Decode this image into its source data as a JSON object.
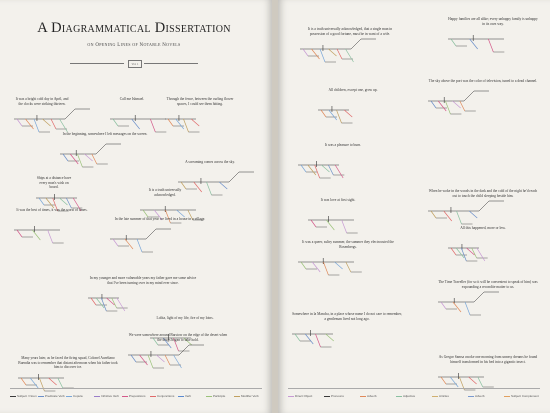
{
  "title": "A Diagrammatical Dissertation",
  "subtitle": "on Opening Lines of Notable Novels",
  "tag": "Vol. 1",
  "legend_left": [
    {
      "label": "Subject / Noun",
      "color": "#3a3a3a"
    },
    {
      "label": "Predicate Verb",
      "color": "#6b8fc9"
    },
    {
      "label": "Copula",
      "color": "#7aa7d8"
    },
    {
      "label": "Infinitive Verb",
      "color": "#9a7ec8"
    },
    {
      "label": "Prepositions",
      "color": "#d45a8a"
    },
    {
      "label": "Conjunctions",
      "color": "#e06a6a"
    },
    {
      "label": "Verb",
      "color": "#5a8ad0"
    },
    {
      "label": "Participle",
      "color": "#9bc27a"
    },
    {
      "label": "Modifier Verb",
      "color": "#c0a060"
    }
  ],
  "legend_right": [
    {
      "label": "Direct Object",
      "color": "#c79ad4"
    },
    {
      "label": "Pronouns",
      "color": "#3a3a3a"
    },
    {
      "label": "Adverb",
      "color": "#e08a5a"
    },
    {
      "label": "Adjective",
      "color": "#8ac0a0"
    },
    {
      "label": "Articles",
      "color": "#d0b070"
    },
    {
      "label": "Adverb",
      "color": "#7a9ad0"
    },
    {
      "label": "Subject Complement",
      "color": "#e0a060"
    }
  ],
  "left_sentences": [
    "It was a bright cold day in April, and the clocks were striking thirteen.",
    "Call me Ishmael.",
    "Through the fence, between the curling flower spaces, I could see them hitting.",
    "In the beginning, somewhere I left messages on the screen.",
    "Ships at a distance have every man's wish on board.",
    "It was the best of times, it was the worst of times.",
    "A screaming comes across the sky.",
    "It is a truth universally acknowledged.",
    "In my younger and more vulnerable years my father gave me some advice that I've been turning over in my mind ever since.",
    "In the late summer of that year we lived in a house in a village.",
    "Lolita, light of my life, fire of my loins.",
    "Many years later, as he faced the firing squad, Colonel Aureliano Buendia was to remember that distant afternoon when his father took him to discover ice.",
    "We were somewhere around Barstow on the edge of the desert when the drugs began to take hold."
  ],
  "right_sentences": [
    "It is a truth universally acknowledged, that a single man in possession of a good fortune, must be in want of a wife.",
    "Happy families are all alike; every unhappy family is unhappy in its own way.",
    "All children, except one, grow up.",
    "The sky above the port was the color of television, tuned to a dead channel.",
    "It was a pleasure to burn.",
    "It was love at first sight.",
    "When he woke in the woods in the dark and the cold of the night he'd reach out to touch the child sleeping beside him.",
    "It was a queer, sultry summer, the summer they electrocuted the Rosenbergs.",
    "All this happened, more or less.",
    "The Time Traveller (for so it will be convenient to speak of him) was expounding a recondite matter to us.",
    "Somewhere in la Mancha, in a place whose name I do not care to remember, a gentleman lived not long ago.",
    "As Gregor Samsa awoke one morning from uneasy dreams he found himself transformed in his bed into a gigantic insect."
  ]
}
